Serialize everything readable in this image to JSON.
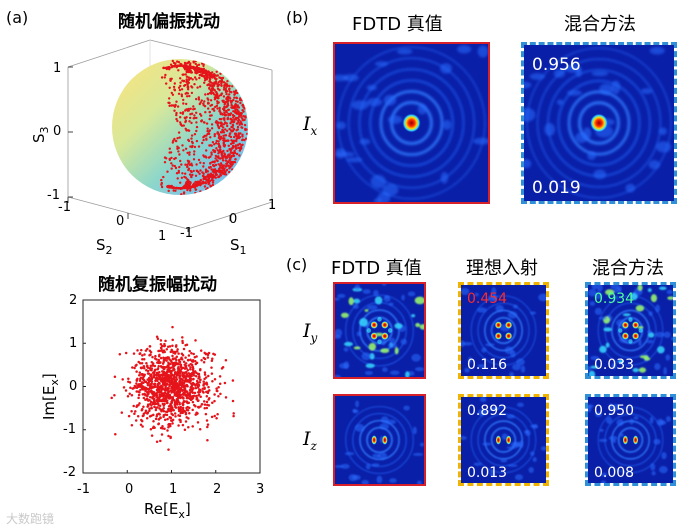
{
  "panel_a": {
    "label": "(a)",
    "title_top": "随机偏振扰动",
    "title_bottom": "随机复振幅扰动",
    "sphere_axes": {
      "s1": "S",
      "s1_sub": "1",
      "s2": "S",
      "s2_sub": "2",
      "s3": "S",
      "s3_sub": "3"
    },
    "sphere_ticks": {
      "s3": [
        "1",
        "0",
        "-1"
      ],
      "s2": [
        "-1",
        "0",
        "1"
      ],
      "s1": [
        "1",
        "0",
        "-1"
      ]
    }
  },
  "panel_b": {
    "label": "(b)",
    "col_fdtd": "FDTD 真值",
    "col_hybrid": "混合方法",
    "row_label": "I",
    "row_sub": "x",
    "hybrid_max": "0.956",
    "hybrid_min": "0.019"
  },
  "panel_c": {
    "label": "(c)",
    "col_fdtd": "FDTD 真值",
    "col_ideal": "理想入射",
    "col_hybrid": "混合方法",
    "rows": [
      {
        "label": "I",
        "sub": "y",
        "ideal_max": "0.454",
        "ideal_min": "0.116",
        "hybrid_max": "0.934",
        "hybrid_min": "0.033"
      },
      {
        "label": "I",
        "sub": "z",
        "ideal_max": "0.892",
        "ideal_min": "0.013",
        "hybrid_max": "0.950",
        "hybrid_min": "0.008"
      }
    ]
  },
  "colors": {
    "fdtd_border": "#d6212a",
    "dash_gold": "#f0b400",
    "dash_blue": "#2f90d8",
    "scatter": "#e5141b",
    "ideal_max_text": "#ff2a2a",
    "hybrid_max_text_y": "#4dff9c"
  },
  "chart_data": {
    "type": "scatter",
    "title": "随机复振幅扰动",
    "xlabel": "Re[E",
    "xlabel_sub": "x",
    "xlabel_end": "]",
    "ylabel": "Im[E",
    "ylabel_sub": "x",
    "ylabel_end": "]",
    "xlim": [
      -1,
      3
    ],
    "ylim": [
      -2,
      2
    ],
    "xticks": [
      "-1",
      "0",
      "1",
      "2",
      "3"
    ],
    "yticks": [
      "2",
      "1",
      "0",
      "-1",
      "-2"
    ],
    "x_center": 1.0,
    "y_center": 0.0,
    "std": 0.45,
    "n_points": 1200,
    "series_name": "random complex amplitude samples"
  },
  "watermark": "大数跑镜"
}
